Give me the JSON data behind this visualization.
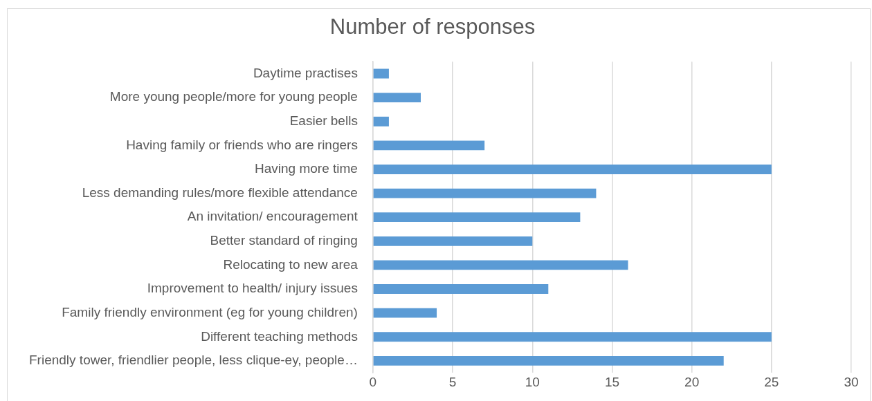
{
  "chart_data": {
    "type": "bar",
    "orientation": "horizontal",
    "title": "Number of responses",
    "categories": [
      "Daytime practises",
      "More young people/more for young people",
      "Easier bells",
      "Having family or friends who are ringers",
      "Having more time",
      "Less demanding rules/more flexible attendance",
      "An invitation/ encouragement",
      "Better standard of ringing",
      "Relocating to new area",
      "Improvement to health/ injury issues",
      "Family friendly environment (eg for young children)",
      "Different teaching methods",
      "Friendly tower, friendlier people, less clique-ey, people…"
    ],
    "values": [
      1,
      3,
      1,
      7,
      25,
      14,
      13,
      10,
      16,
      11,
      4,
      25,
      22
    ],
    "color": "#5b9bd5",
    "xlim": [
      0,
      30
    ],
    "xticks": [
      0,
      5,
      10,
      15,
      20,
      25,
      30
    ],
    "grid": "x",
    "legend": false
  }
}
